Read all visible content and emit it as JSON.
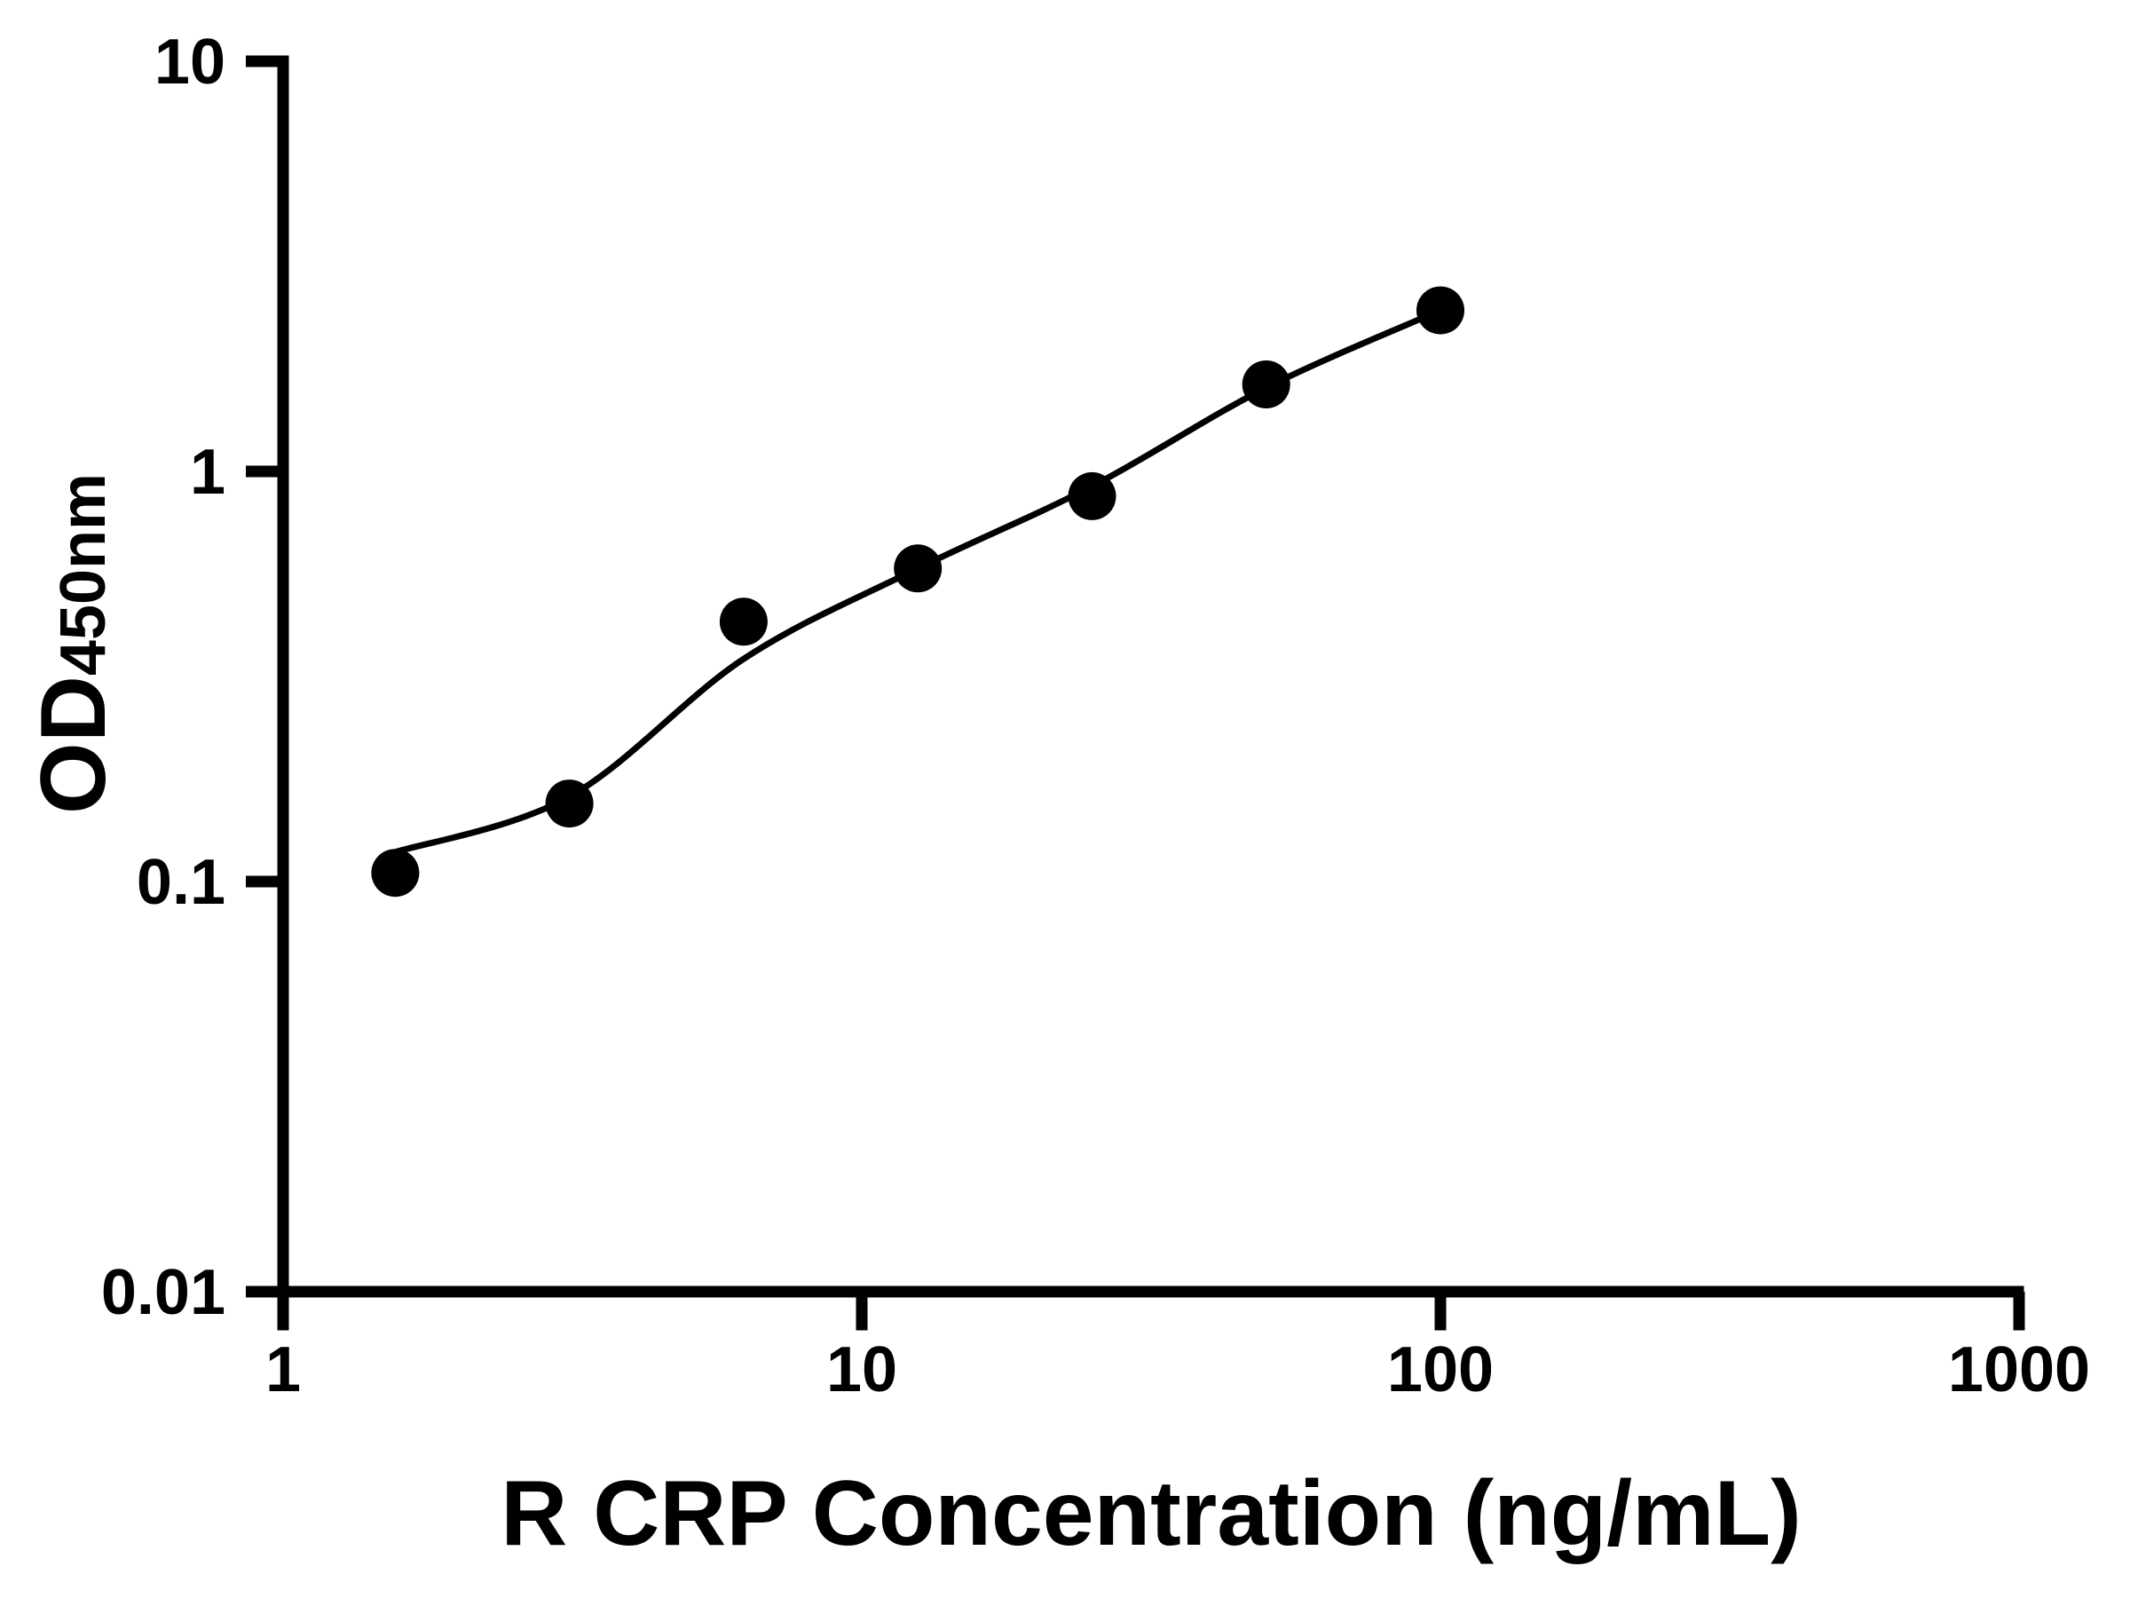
{
  "figure": {
    "background_color": "#ffffff",
    "foreground_color": "#000000"
  },
  "chart_data": {
    "type": "scatter",
    "title": "",
    "xlabel": "R CRP Concentration (ng/mL)",
    "ylabel_main": "OD",
    "ylabel_sub": "450nm",
    "x_scale": "log",
    "y_scale": "log",
    "xlim": [
      1,
      1000
    ],
    "ylim": [
      0.01,
      10
    ],
    "x_tick_labels": [
      "1",
      "10",
      "100",
      "1000"
    ],
    "x_tick_values": [
      1,
      10,
      100,
      1000
    ],
    "y_tick_labels": [
      "0.01",
      "0.1",
      "1",
      "10"
    ],
    "y_tick_values": [
      0.01,
      0.1,
      1,
      10
    ],
    "grid": false,
    "legend": "none",
    "series": [
      {
        "name": "standard-curve-points",
        "marker": "filled-circle",
        "color": "#000000",
        "x": [
          1.5625,
          3.125,
          6.25,
          12.5,
          25,
          50,
          100
        ],
        "y": [
          0.105,
          0.155,
          0.43,
          0.58,
          0.87,
          1.63,
          2.47
        ]
      }
    ],
    "fit_curve": {
      "name": "fitted-standard-curve",
      "color": "#000000",
      "x": [
        1.5625,
        3.125,
        6.25,
        12.5,
        25,
        50,
        100
      ],
      "y": [
        0.118,
        0.161,
        0.349,
        0.58,
        0.92,
        1.6,
        2.47
      ]
    }
  }
}
